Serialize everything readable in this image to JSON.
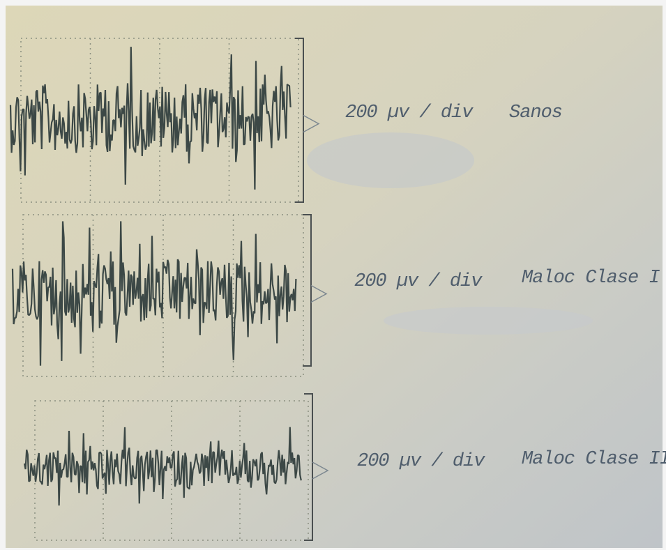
{
  "panels": [
    {
      "scale": "200 µv / div",
      "label": "Sanos"
    },
    {
      "scale": "200 µv / div",
      "label": "Maloc Clase I"
    },
    {
      "scale": "200 µv / div",
      "label": "Maloc Clase II"
    }
  ]
}
